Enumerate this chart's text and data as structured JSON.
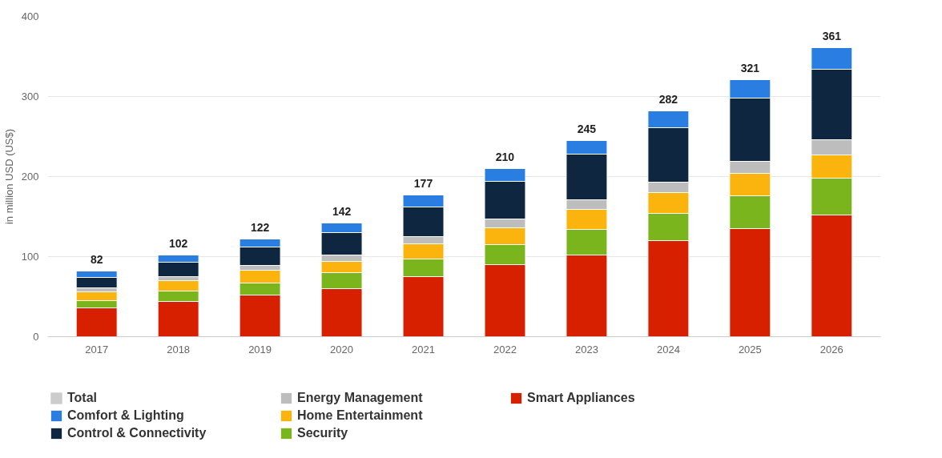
{
  "chart_data": {
    "type": "bar",
    "stacked": true,
    "ylabel": "in million USD (US$)",
    "categories": [
      "2017",
      "2018",
      "2019",
      "2020",
      "2021",
      "2022",
      "2023",
      "2024",
      "2025",
      "2026"
    ],
    "series": [
      {
        "name": "Smart Appliances",
        "color": "#d62000",
        "values": [
          36,
          44,
          52,
          60,
          75,
          90,
          102,
          120,
          135,
          152
        ]
      },
      {
        "name": "Security",
        "color": "#7ab51d",
        "values": [
          9,
          13,
          15,
          20,
          22,
          25,
          32,
          34,
          41,
          46
        ]
      },
      {
        "name": "Home Entertainment",
        "color": "#fbb40d",
        "values": [
          11,
          13,
          16,
          14,
          19,
          21,
          25,
          26,
          28,
          29
        ]
      },
      {
        "name": "Energy Management",
        "color": "#bdbdbd",
        "values": [
          5,
          5,
          6,
          8,
          9,
          11,
          12,
          13,
          15,
          19
        ]
      },
      {
        "name": "Control & Connectivity",
        "color": "#0f2640",
        "values": [
          13,
          18,
          23,
          28,
          37,
          47,
          57,
          68,
          79,
          88
        ]
      },
      {
        "name": "Comfort & Lighting",
        "color": "#2a7de1",
        "values": [
          8,
          9,
          10,
          12,
          15,
          16,
          17,
          21,
          23,
          27
        ]
      },
      {
        "name": "Total",
        "color": "#cccccc",
        "values": [
          null,
          null,
          null,
          null,
          null,
          null,
          null,
          null,
          null,
          null
        ]
      }
    ],
    "totals": [
      "82",
      "102",
      "122",
      "142",
      "177",
      "210",
      "245",
      "282",
      "321",
      "361"
    ],
    "ylim": [
      0,
      400
    ],
    "yticks": [
      0,
      100,
      200,
      300,
      400
    ],
    "grid": "y",
    "legend": "bottom"
  }
}
